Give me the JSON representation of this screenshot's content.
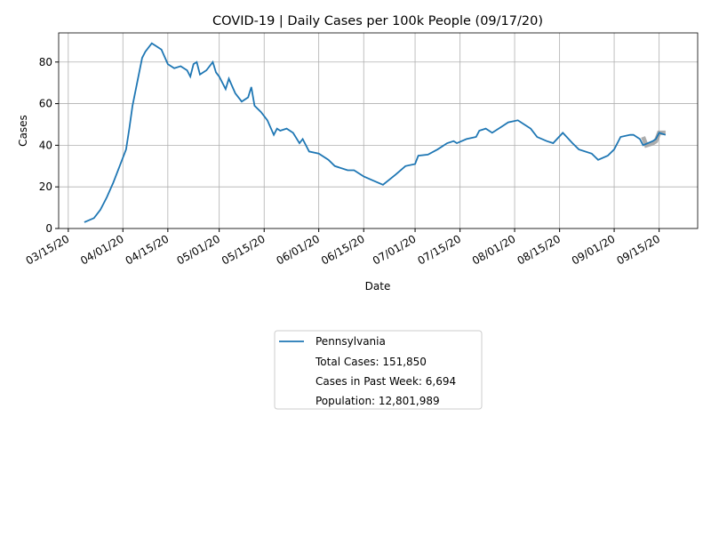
{
  "chart_data": {
    "type": "line",
    "title": "COVID-19 | Daily Cases per 100k People (09/17/20)",
    "x_label": "Date",
    "y_label": "Cases",
    "x": [
      "03/20/20",
      "03/23/20",
      "03/25/20",
      "03/27/20",
      "03/29/20",
      "03/31/20",
      "04/02/20",
      "04/03/20",
      "04/04/20",
      "04/07/20",
      "04/08/20",
      "04/10/20",
      "04/11/20",
      "04/13/20",
      "04/15/20",
      "04/17/20",
      "04/19/20",
      "04/21/20",
      "04/22/20",
      "04/23/20",
      "04/24/20",
      "04/25/20",
      "04/27/20",
      "04/29/20",
      "04/30/20",
      "05/01/20",
      "05/03/20",
      "05/04/20",
      "05/06/20",
      "05/08/20",
      "05/10/20",
      "05/11/20",
      "05/12/20",
      "05/14/20",
      "05/16/20",
      "05/18/20",
      "05/19/20",
      "05/20/20",
      "05/22/20",
      "05/24/20",
      "05/26/20",
      "05/27/20",
      "05/29/20",
      "06/01/20",
      "06/04/20",
      "06/06/20",
      "06/10/20",
      "06/12/20",
      "06/15/20",
      "06/18/20",
      "06/21/20",
      "06/25/20",
      "06/28/20",
      "07/01/20",
      "07/02/20",
      "07/05/20",
      "07/08/20",
      "07/11/20",
      "07/13/20",
      "07/14/20",
      "07/17/20",
      "07/20/20",
      "07/21/20",
      "07/23/20",
      "07/25/20",
      "07/28/20",
      "07/30/20",
      "08/02/20",
      "08/04/20",
      "08/06/20",
      "08/08/20",
      "08/11/20",
      "08/13/20",
      "08/16/20",
      "08/19/20",
      "08/21/20",
      "08/25/20",
      "08/27/20",
      "08/30/20",
      "09/01/20",
      "09/03/20",
      "09/06/20",
      "09/07/20",
      "09/09/20",
      "09/10/20",
      "09/13/20",
      "09/14/20",
      "09/15/20",
      "09/17/20"
    ],
    "series": [
      {
        "name": "Pennsylvania",
        "color": "#1f77b4",
        "values": [
          3,
          5,
          9,
          15,
          22,
          30,
          38,
          48,
          59,
          82,
          85,
          89,
          88,
          86,
          79,
          77,
          78,
          76,
          73,
          79,
          80,
          74,
          76,
          80,
          75,
          73,
          67,
          72,
          65,
          61,
          63,
          68,
          59,
          56,
          52,
          45,
          48,
          47,
          48,
          46,
          41,
          43,
          37,
          36,
          33,
          30,
          28,
          28,
          25,
          23,
          21,
          26,
          30,
          31,
          35,
          35.5,
          38,
          41,
          42,
          41,
          43,
          44,
          47,
          48,
          46,
          49,
          51,
          52,
          50,
          48,
          44,
          42,
          41,
          46,
          41,
          38,
          36,
          33,
          35,
          38,
          44,
          45,
          45,
          43,
          40,
          42,
          43,
          46,
          45
        ]
      }
    ],
    "recent": {
      "color": "#999999",
      "x": [
        "09/10/20",
        "09/11/20",
        "09/13/20",
        "09/14/20",
        "09/15/20",
        "09/17/20"
      ],
      "values": [
        44,
        40,
        41,
        42,
        46,
        46
      ]
    },
    "legend_notes": [
      "Total Cases: 151,850",
      "Cases in Past Week: 6,694",
      "Population: 12,801,989"
    ],
    "xlim": [
      "03/12/20",
      "09/27/20"
    ],
    "xticks": [
      "03/15/20",
      "04/01/20",
      "04/15/20",
      "05/01/20",
      "05/15/20",
      "06/01/20",
      "06/15/20",
      "07/01/20",
      "07/15/20",
      "08/01/20",
      "08/15/20",
      "09/01/20",
      "09/15/20"
    ],
    "ylim": [
      0,
      94
    ],
    "yticks": [
      0,
      20,
      40,
      60,
      80
    ],
    "grid": true
  }
}
